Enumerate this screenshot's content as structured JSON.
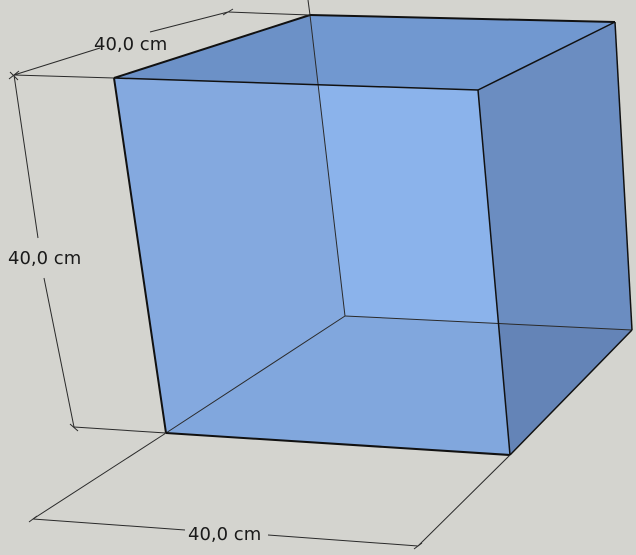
{
  "diagram": {
    "type": "3d-cube-dimensioned",
    "colors": {
      "background": "#d4d4cf",
      "dimension_line": "#2a2a2a",
      "edge": "#1a1a1a",
      "face_back_left": "#7ea3da",
      "face_back_right_inner": "#8ab3ee",
      "face_bottom": "#7aa0d8",
      "face_right": "#6a86b8",
      "face_top": "#6b8cc0",
      "face_front": "#86aee8"
    },
    "dimensions": {
      "width_label": "40,0 cm",
      "height_label": "40,0 cm",
      "depth_label": "40,0 cm"
    }
  }
}
